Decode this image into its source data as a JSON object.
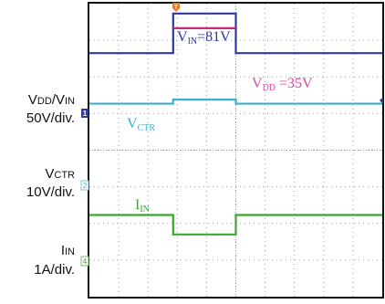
{
  "labels": {
    "vdd_vin": {
      "main_1": "V",
      "sub_1": "DD",
      "sep": "/V",
      "sub_2": "IN"
    },
    "vdd_scale": "50V/div.",
    "vctr": {
      "main": "V",
      "sub": "CTR"
    },
    "vctr_scale": "10V/div.",
    "iin": {
      "main": "I",
      "sub": "IN"
    },
    "iin_scale": "1A/div."
  },
  "channel_markers": {
    "ch1": "1",
    "ch2": "2",
    "ch4": "4",
    "trigger": "T"
  },
  "annotations": {
    "vin": {
      "main": "V",
      "sub": "IN",
      "value": "=81V"
    },
    "vdd": {
      "main": "V",
      "sub": "DD",
      "value": "=35V"
    },
    "vctr": {
      "main": "V",
      "sub": "CTR"
    },
    "iin": {
      "main": "I",
      "sub": "IN"
    }
  },
  "colors": {
    "vin": "#2e3a9e",
    "vdd": "#c8287a",
    "vctr": "#3fb0c8",
    "iin": "#3aa830",
    "grid": "#9aa3ad",
    "frame": "#111111",
    "ch2_marker": "#7fc4d8",
    "ch4_marker": "#6cc05a",
    "trigger_marker": "#e87a1a"
  },
  "chart_data": {
    "type": "line",
    "grid": true,
    "grid_divisions": {
      "x": 10,
      "y": 8
    },
    "x_range_div": [
      0,
      10
    ],
    "pulse_div": [
      2.86,
      5.0
    ],
    "series": [
      {
        "name": "V_IN",
        "scale": "50V/div.",
        "base_div": 6.65,
        "pulse_div": 7.73,
        "peak_value": "81V"
      },
      {
        "name": "V_DD",
        "scale": "50V/div.",
        "base_div": 6.65,
        "pulse_div": 7.33,
        "peak_value": "35V"
      },
      {
        "name": "V_CTR",
        "scale": "10V/div.",
        "base_div": 5.27,
        "pulse_div": 5.38
      },
      {
        "name": "I_IN",
        "scale": "1A/div.",
        "base_div": 2.23,
        "pulse_div": 1.7
      }
    ]
  }
}
